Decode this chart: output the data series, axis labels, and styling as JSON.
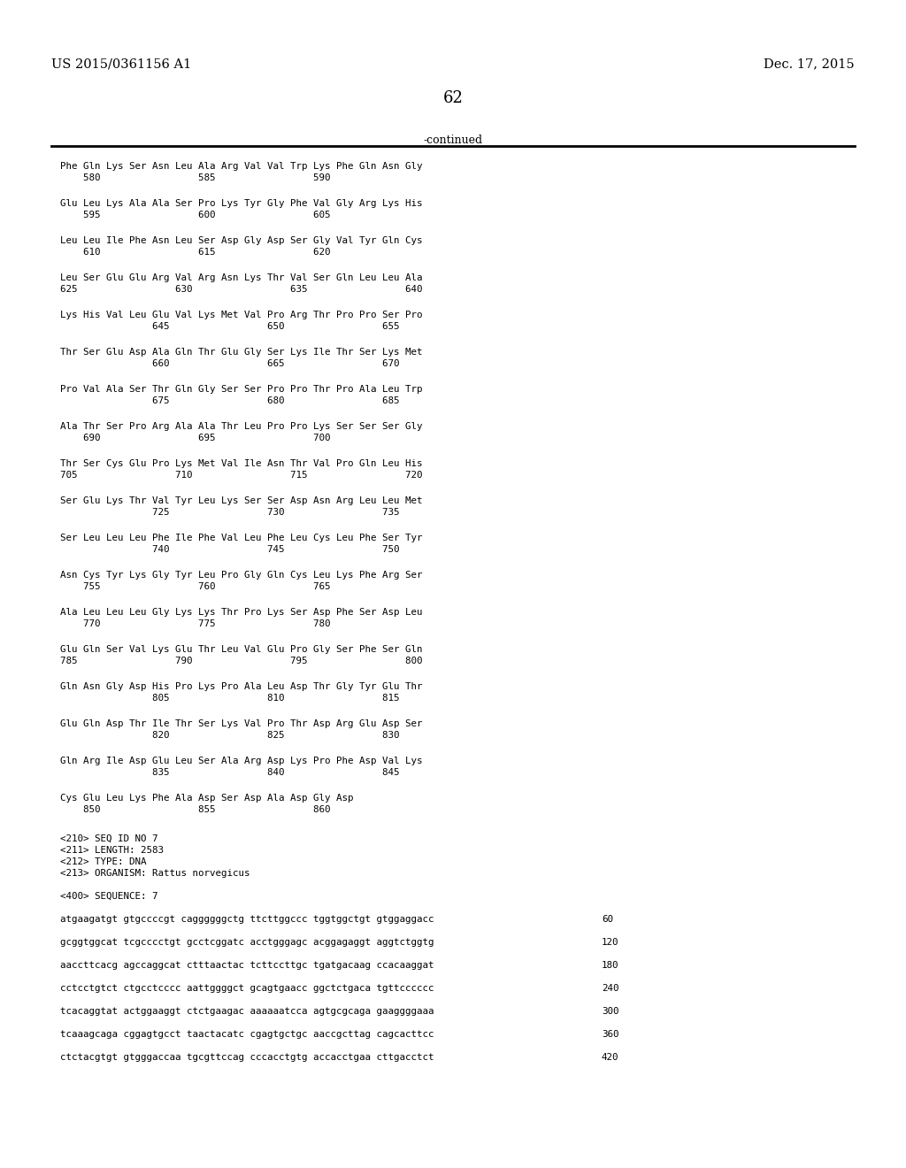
{
  "header_left": "US 2015/0361156 A1",
  "header_right": "Dec. 17, 2015",
  "page_number": "62",
  "continued_label": "-continued",
  "background_color": "#ffffff",
  "text_color": "#000000",
  "sequence_blocks": [
    [
      "Phe Gln Lys Ser Asn Leu Ala Arg Val Val Trp Lys Phe Gln Asn Gly",
      "    580                 585                 590"
    ],
    [
      "Glu Leu Lys Ala Ala Ser Pro Lys Tyr Gly Phe Val Gly Arg Lys His",
      "    595                 600                 605"
    ],
    [
      "Leu Leu Ile Phe Asn Leu Ser Asp Gly Asp Ser Gly Val Tyr Gln Cys",
      "    610                 615                 620"
    ],
    [
      "Leu Ser Glu Glu Arg Val Arg Asn Lys Thr Val Ser Gln Leu Leu Ala",
      "625                 630                 635                 640"
    ],
    [
      "Lys His Val Leu Glu Val Lys Met Val Pro Arg Thr Pro Pro Ser Pro",
      "                645                 650                 655"
    ],
    [
      "Thr Ser Glu Asp Ala Gln Thr Glu Gly Ser Lys Ile Thr Ser Lys Met",
      "                660                 665                 670"
    ],
    [
      "Pro Val Ala Ser Thr Gln Gly Ser Ser Pro Pro Thr Pro Ala Leu Trp",
      "                675                 680                 685"
    ],
    [
      "Ala Thr Ser Pro Arg Ala Ala Thr Leu Pro Pro Lys Ser Ser Ser Gly",
      "    690                 695                 700"
    ],
    [
      "Thr Ser Cys Glu Pro Lys Met Val Ile Asn Thr Val Pro Gln Leu His",
      "705                 710                 715                 720"
    ],
    [
      "Ser Glu Lys Thr Val Tyr Leu Lys Ser Ser Asp Asn Arg Leu Leu Met",
      "                725                 730                 735"
    ],
    [
      "Ser Leu Leu Leu Phe Ile Phe Val Leu Phe Leu Cys Leu Phe Ser Tyr",
      "                740                 745                 750"
    ],
    [
      "Asn Cys Tyr Lys Gly Tyr Leu Pro Gly Gln Cys Leu Lys Phe Arg Ser",
      "    755                 760                 765"
    ],
    [
      "Ala Leu Leu Leu Gly Lys Lys Thr Pro Lys Ser Asp Phe Ser Asp Leu",
      "    770                 775                 780"
    ],
    [
      "Glu Gln Ser Val Lys Glu Thr Leu Val Glu Pro Gly Ser Phe Ser Gln",
      "785                 790                 795                 800"
    ],
    [
      "Gln Asn Gly Asp His Pro Lys Pro Ala Leu Asp Thr Gly Tyr Glu Thr",
      "                805                 810                 815"
    ],
    [
      "Glu Gln Asp Thr Ile Thr Ser Lys Val Pro Thr Asp Arg Glu Asp Ser",
      "                820                 825                 830"
    ],
    [
      "Gln Arg Ile Asp Glu Leu Ser Ala Arg Asp Lys Pro Phe Asp Val Lys",
      "                835                 840                 845"
    ],
    [
      "Cys Glu Leu Lys Phe Ala Asp Ser Asp Ala Asp Gly Asp",
      "    850                 855                 860"
    ]
  ],
  "metadata_lines": [
    "<210> SEQ ID NO 7",
    "<211> LENGTH: 2583",
    "<212> TYPE: DNA",
    "<213> ORGANISM: Rattus norvegicus",
    "",
    "<400> SEQUENCE: 7",
    "",
    "atgaagatgt gtgccccgt caggggggctg ttcttggccc tggtggctgt gtggaggacc       60",
    "",
    "gcggtggcat tcgcccctgt gcctcggatc acctgggagc acggagaggt aggtctggtg      120",
    "",
    "aaccttcacg agccaggcat ctttaactac tcttccttgc tgatgacaag ccacaaggat      180",
    "",
    "cctcctgtct ctgcctcccc aattggggct gcagtgaacc ggctctgaca tgttcccccc      240",
    "",
    "tcacaggtat actggaaggt ctctgaagac aaaaaatcca agtgcgcaga gaaggggaaa      300",
    "",
    "tcaaagcaga cggagtgcct taactacatc cgagtgctgc aaccgcttag cagcacttcc      360",
    "",
    "ctctacgtgt gtgggaccaa tgcgttccag cccacctgtg accacctgaa cttgacctct      420"
  ],
  "dna_lines": [
    [
      "atgaagatgt gtgccccgt caggggggctg ttcttggccc tggtggctgt gtggaggacc",
      "60"
    ],
    [
      "gcggtggcat tcgcccctgt gcctcggatc acctgggagc acggagaggt aggtctggtg",
      "120"
    ],
    [
      "aaccttcacg agccaggcat ctttaactac tcttccttgc tgatgacaag ccacaaggat",
      "180"
    ],
    [
      "cctcctgtct ctgcctcccc aattggggct gcagtgaacc ggctctgaca tgttcccccc",
      "240"
    ],
    [
      "tcacaggtat actggaaggt ctctgaagac aaaaaatcca agtgcgcaga gaaggggaaa",
      "300"
    ],
    [
      "tcaaagcaga cggagtgcct taactacatc cgagtgctgc aaccgcttag cagcacttcc",
      "360"
    ],
    [
      "ctctacgtgt gtgggaccaa tgcgttccag cccacctgtg accacctgaa cttgacctct",
      "420"
    ]
  ]
}
